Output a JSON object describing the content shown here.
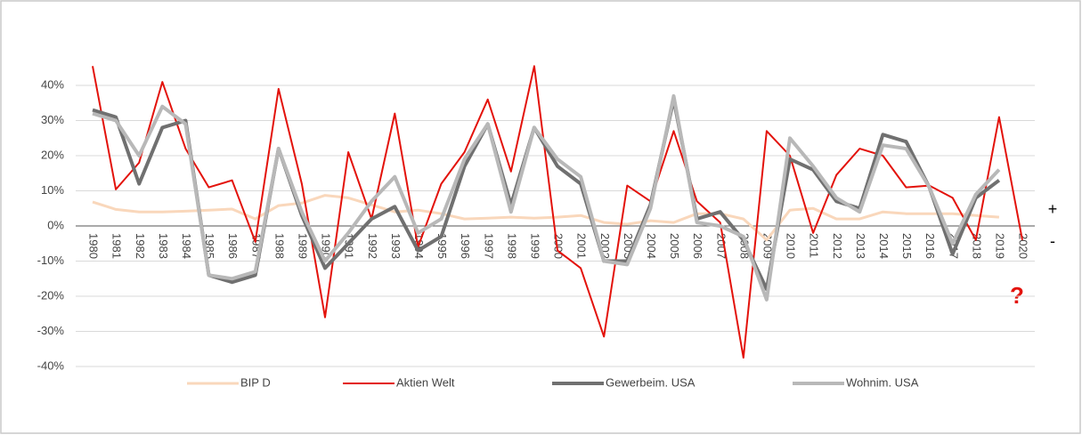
{
  "chart_data": {
    "type": "line",
    "categories": [
      "1980",
      "1981",
      "1982",
      "1983",
      "1984",
      "1985",
      "1986",
      "1987",
      "1988",
      "1989",
      "1990",
      "1991",
      "1992",
      "1993",
      "1994",
      "1995",
      "1996",
      "1997",
      "1998",
      "1999",
      "2000",
      "2001",
      "2002",
      "2003",
      "2004",
      "2005",
      "2006",
      "2007",
      "2008",
      "2009",
      "2010",
      "2011",
      "2012",
      "2013",
      "2014",
      "2015",
      "2016",
      "2017",
      "2018",
      "2019",
      "2020"
    ],
    "series": [
      {
        "name": "BIP D",
        "color": "#f9d7bb",
        "width": 3,
        "values": [
          6.8,
          4.7,
          4,
          4,
          4.2,
          4.5,
          4.8,
          2,
          5.8,
          6.5,
          8.7,
          8,
          6,
          4,
          4.5,
          3.5,
          2,
          2.2,
          2.5,
          2.2,
          2.5,
          3,
          1,
          0.5,
          1.5,
          1,
          3.5,
          3.5,
          2,
          -4,
          4.5,
          5,
          2,
          2,
          4,
          3.5,
          3.5,
          3.5,
          3,
          2.5,
          null
        ]
      },
      {
        "name": "Aktien Welt",
        "color": "#e3120b",
        "width": 2,
        "values": [
          45.5,
          10.4,
          18,
          41,
          22,
          11,
          13,
          -4.5,
          39,
          12,
          -26,
          21,
          2,
          32,
          -6,
          12,
          21,
          36,
          15.5,
          45.5,
          -7,
          -12,
          -31.5,
          11.5,
          7,
          27,
          7,
          1,
          -37.5,
          27,
          20,
          -2,
          14.5,
          22,
          20,
          11,
          11.5,
          8,
          -4,
          31,
          -4
        ]
      },
      {
        "name": "Gewerbeim. USA",
        "color": "#707070",
        "width": 4,
        "values": [
          33,
          31,
          12,
          28,
          30,
          -14,
          -16,
          -14,
          22,
          3,
          -12,
          -5,
          2,
          5.5,
          -7,
          -3,
          17,
          29,
          6,
          28,
          17,
          12,
          -10,
          -10,
          6,
          36,
          2,
          4,
          -4,
          -18,
          19,
          16,
          7,
          5,
          26,
          24,
          11,
          -8,
          8,
          13,
          null
        ]
      },
      {
        "name": "Wohnim. USA",
        "color": "#b8b8b8",
        "width": 4,
        "values": [
          32,
          30,
          20,
          34,
          29,
          -14,
          -15,
          -13,
          22,
          4,
          -10,
          -2,
          7,
          14,
          -2,
          2,
          19,
          29,
          4,
          28,
          19,
          14,
          -10,
          -11,
          5,
          37,
          1,
          0,
          -3,
          -21,
          25,
          17,
          8,
          4,
          23,
          22,
          11,
          -5,
          9,
          16,
          null
        ]
      }
    ],
    "ylim": [
      -40,
      50
    ],
    "yticks": [
      {
        "value": -40,
        "label": "-40%"
      },
      {
        "value": -30,
        "label": "-30%"
      },
      {
        "value": -20,
        "label": "-20%"
      },
      {
        "value": -10,
        "label": "-10%"
      },
      {
        "value": 0,
        "label": "0%"
      },
      {
        "value": 10,
        "label": "10%"
      },
      {
        "value": 20,
        "label": "20%"
      },
      {
        "value": 30,
        "label": "30%"
      },
      {
        "value": 40,
        "label": "40%"
      }
    ],
    "grid": true,
    "legend": "bottom",
    "annotations": {
      "plus": "+",
      "minus": "-",
      "question": "?"
    }
  }
}
